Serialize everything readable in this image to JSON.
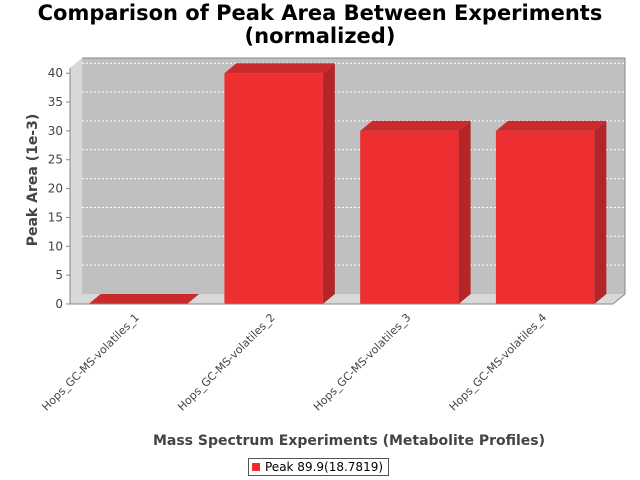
{
  "chart_data": {
    "type": "bar",
    "title_line1": "Comparison of Peak Area Between Experiments",
    "title_line2": "(normalized)",
    "xlabel": "Mass Spectrum Experiments (Metabolite Profiles)",
    "ylabel": "Peak Area (1e-3)",
    "categories": [
      "Hops_GC-MS-volatiles_1",
      "Hops_GC-MS-volatiles_2",
      "Hops_GC-MS-volatiles_3",
      "Hops_GC-MS-volatiles_4"
    ],
    "series": [
      {
        "name": "Peak 89.9(18.7819)",
        "values": [
          0,
          40,
          30,
          30
        ]
      }
    ],
    "ylim": [
      0,
      40
    ],
    "yticks": [
      0,
      5,
      10,
      15,
      20,
      25,
      30,
      35,
      40
    ],
    "grid": true,
    "legend_position": "bottom",
    "colors": {
      "bar_front": "#ee2f31",
      "bar_top": "#c92a2c",
      "bar_side": "#b32526",
      "plot_background": "#c0c0c0",
      "plot_wall": "#d8d8d8"
    }
  }
}
